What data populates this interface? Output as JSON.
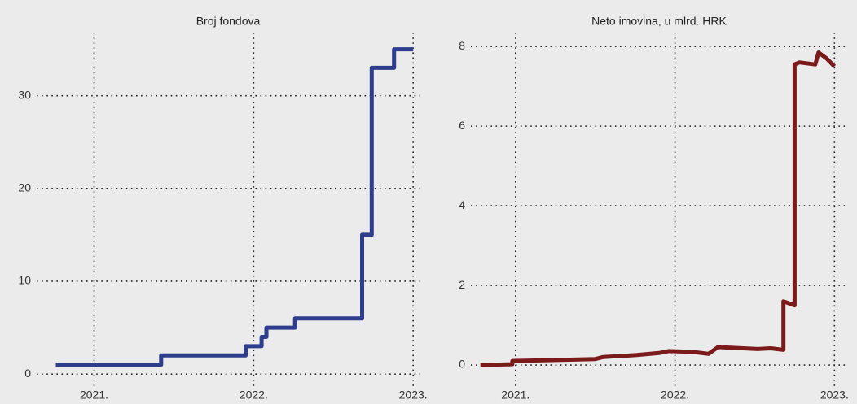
{
  "chart_data": [
    {
      "type": "line",
      "title": "Broj fondova",
      "color": "#2e3d8c",
      "grid": true,
      "x": [
        2020.76,
        2021.42,
        2021.42,
        2021.95,
        2021.95,
        2022.05,
        2022.05,
        2022.08,
        2022.08,
        2022.26,
        2022.26,
        2022.68,
        2022.68,
        2022.74,
        2022.74,
        2022.88,
        2022.88,
        2023.0
      ],
      "values": [
        1,
        1,
        2,
        2,
        3,
        3,
        4,
        4,
        5,
        5,
        6,
        6,
        15,
        15,
        33,
        33,
        35,
        35
      ],
      "xlim": [
        2020.64,
        2023.04
      ],
      "ylim": [
        -1.3,
        36.8
      ],
      "xticks": [
        {
          "value": 2021,
          "label": "2021."
        },
        {
          "value": 2022,
          "label": "2022."
        },
        {
          "value": 2023,
          "label": "2023."
        }
      ],
      "yticks": [
        0,
        10,
        20,
        30
      ]
    },
    {
      "type": "line",
      "title": "Neto imovina, u mlrd. HRK",
      "color": "#7a1a1a",
      "grid": true,
      "x": [
        2020.78,
        2020.98,
        2020.98,
        2021.5,
        2021.55,
        2021.76,
        2021.9,
        2021.96,
        2022.11,
        2022.21,
        2022.27,
        2022.52,
        2022.6,
        2022.68,
        2022.68,
        2022.75,
        2022.75,
        2022.78,
        2022.88,
        2022.9,
        2022.95,
        2023.0
      ],
      "values": [
        0.0,
        0.02,
        0.1,
        0.15,
        0.2,
        0.25,
        0.3,
        0.35,
        0.33,
        0.28,
        0.45,
        0.4,
        0.42,
        0.38,
        1.6,
        1.5,
        7.55,
        7.6,
        7.55,
        7.85,
        7.7,
        7.5
      ],
      "xlim": [
        2020.72,
        2023.08
      ],
      "ylim": [
        -0.53,
        8.35
      ],
      "xticks": [
        {
          "value": 2021,
          "label": "2021."
        },
        {
          "value": 2022,
          "label": "2022."
        },
        {
          "value": 2023,
          "label": "2023."
        }
      ],
      "yticks": [
        0,
        2,
        4,
        6,
        8
      ]
    }
  ]
}
